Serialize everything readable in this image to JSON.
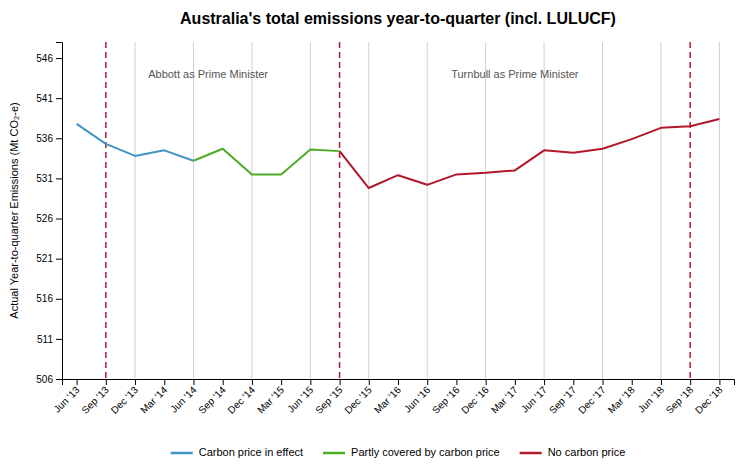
{
  "chart_data": {
    "type": "line",
    "title": "Australia's total emissions year-to-quarter (incl. LULUCF)",
    "y_label": "Actual Year-to-quarter Emissions (Mt CO₂-e)",
    "categories": [
      "Jun '13",
      "Sep '13",
      "Dec '13",
      "Mar '14",
      "Jun '14",
      "Sep '14",
      "Dec '14",
      "Mar '15",
      "Jun '15",
      "Sep '15",
      "Dec '15",
      "Mar '16",
      "Jun '16",
      "Sep '16",
      "Dec '16",
      "Mar '17",
      "Jun '17",
      "Sep '17",
      "Dec '17",
      "Mar '18",
      "Jun '18",
      "Sep '18",
      "Dec '18"
    ],
    "series": [
      {
        "name": "Carbon price in effect",
        "color": "#4393c3",
        "values": [
          537.8,
          535.3,
          533.8,
          534.5,
          533.2,
          null,
          null,
          null,
          null,
          null,
          null,
          null,
          null,
          null,
          null,
          null,
          null,
          null,
          null,
          null,
          null,
          null,
          null
        ]
      },
      {
        "name": "Partly covered by carbon price",
        "color": "#4dac26",
        "values": [
          null,
          null,
          null,
          null,
          533.2,
          534.7,
          531.5,
          531.5,
          534.6,
          534.4,
          null,
          null,
          null,
          null,
          null,
          null,
          null,
          null,
          null,
          null,
          null,
          null,
          null
        ]
      },
      {
        "name": "No carbon price",
        "color": "#b2182b",
        "values": [
          null,
          null,
          null,
          null,
          null,
          null,
          null,
          null,
          null,
          534.4,
          529.8,
          531.4,
          530.2,
          531.5,
          531.7,
          532.0,
          534.5,
          534.2,
          534.7,
          535.9,
          537.3,
          537.5,
          538.4
        ]
      }
    ],
    "vlines": [
      {
        "x": "Dec '13",
        "line_style": "solid",
        "color": "#d0d0d0"
      },
      {
        "x": "Jun '14",
        "line_style": "solid",
        "color": "#d0d0d0"
      },
      {
        "x": "Dec '14",
        "line_style": "solid",
        "color": "#d0d0d0"
      },
      {
        "x": "Jun '15",
        "line_style": "solid",
        "color": "#d0d0d0"
      },
      {
        "x": "Dec '15",
        "line_style": "solid",
        "color": "#d0d0d0"
      },
      {
        "x": "Jun '16",
        "line_style": "solid",
        "color": "#d0d0d0"
      },
      {
        "x": "Dec '16",
        "line_style": "solid",
        "color": "#d0d0d0"
      },
      {
        "x": "Jun '17",
        "line_style": "solid",
        "color": "#d0d0d0"
      },
      {
        "x": "Dec '17",
        "line_style": "solid",
        "color": "#d0d0d0"
      },
      {
        "x": "Jun '18",
        "line_style": "solid",
        "color": "#d0d0d0"
      },
      {
        "x": "Dec '18",
        "line_style": "solid",
        "color": "#d0d0d0"
      },
      {
        "x": "Sep '13",
        "line_style": "dashed",
        "color": "#b2182b"
      },
      {
        "x": "Sep '15",
        "line_style": "dashed",
        "color": "#b2182b"
      },
      {
        "x": "Sep '18",
        "line_style": "dashed",
        "color": "#b2182b"
      }
    ],
    "annotations": [
      {
        "text": "Abbott as Prime Minister",
        "x": 4.5,
        "y": 544.5
      },
      {
        "text": "Turnbull as Prime Minister",
        "x": 15.0,
        "y": 544.5
      }
    ],
    "ylim": [
      506,
      548
    ],
    "yticks": [
      506,
      511,
      516,
      521,
      526,
      531,
      536,
      541,
      546
    ],
    "grid": false,
    "legend": "bottom"
  }
}
